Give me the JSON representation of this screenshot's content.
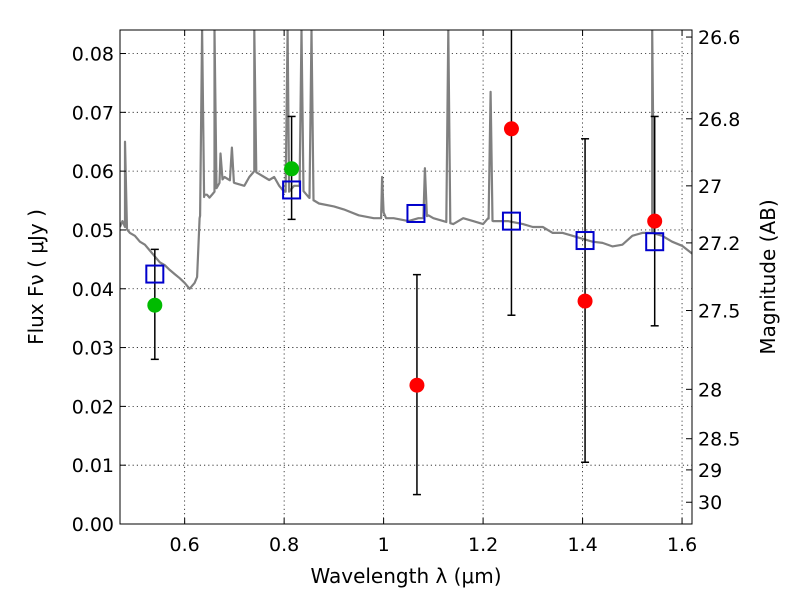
{
  "chart_data": {
    "type": "scatter",
    "title": "",
    "xlabel": "Wavelength  λ (μm)",
    "ylabel_left": "Flux  Fν ( μJy )",
    "ylabel_right": "Magnitude (AB)",
    "xlim": [
      0.47,
      1.62
    ],
    "ylim": [
      0.0,
      0.084
    ],
    "grid": true,
    "x_ticks": [
      0.6,
      0.8,
      1.0,
      1.2,
      1.4,
      1.6
    ],
    "x_tick_labels": [
      "0.6",
      "0.8",
      "1",
      "1.2",
      "1.4",
      "1.6"
    ],
    "y_ticks": [
      0.0,
      0.01,
      0.02,
      0.03,
      0.04,
      0.05,
      0.06,
      0.07,
      0.08
    ],
    "y_tick_labels": [
      "0.00",
      "0.01",
      "0.02",
      "0.03",
      "0.04",
      "0.05",
      "0.06",
      "0.07",
      "0.08"
    ],
    "right_ticks": [
      {
        "flux": 0.0828,
        "label": "26.6"
      },
      {
        "flux": 0.0689,
        "label": "26.8"
      },
      {
        "flux": 0.0575,
        "label": "27"
      },
      {
        "flux": 0.0478,
        "label": "27.2"
      },
      {
        "flux": 0.0363,
        "label": "27.5"
      },
      {
        "flux": 0.0229,
        "label": "28"
      },
      {
        "flux": 0.0145,
        "label": "28.5"
      },
      {
        "flux": 0.0092,
        "label": "29"
      },
      {
        "flux": 0.0037,
        "label": "30"
      }
    ],
    "series": [
      {
        "kind": "model-spectrum",
        "color": "#808080",
        "x": [
          0.47,
          0.475,
          0.48,
          0.49,
          0.5,
          0.51,
          0.52,
          0.53,
          0.54,
          0.55,
          0.56,
          0.57,
          0.58,
          0.59,
          0.6,
          0.61,
          0.62,
          0.625,
          0.63,
          0.64,
          0.645,
          0.65,
          0.66,
          0.67,
          0.68,
          0.7,
          0.72,
          0.73,
          0.74,
          0.75,
          0.76,
          0.77,
          0.78,
          0.79,
          0.8,
          0.81,
          0.82,
          0.83,
          0.84,
          0.85,
          0.86,
          0.87,
          0.9,
          0.92,
          0.95,
          0.98,
          0.995,
          1.0,
          1.005,
          1.02,
          1.05,
          1.07,
          1.08,
          1.09,
          1.1,
          1.12,
          1.14,
          1.16,
          1.18,
          1.2,
          1.21,
          1.22,
          1.25,
          1.28,
          1.3,
          1.32,
          1.34,
          1.36,
          1.38,
          1.4,
          1.42,
          1.44,
          1.46,
          1.48,
          1.5,
          1.52,
          1.54,
          1.56,
          1.58,
          1.6,
          1.62
        ],
        "y": [
          0.0505,
          0.0515,
          0.0505,
          0.0495,
          0.049,
          0.048,
          0.0475,
          0.0465,
          0.0455,
          0.0445,
          0.044,
          0.0432,
          0.0425,
          0.0418,
          0.041,
          0.04,
          0.041,
          0.042,
          0.052,
          0.056,
          0.056,
          0.0555,
          0.0565,
          0.058,
          0.059,
          0.058,
          0.0575,
          0.059,
          0.06,
          0.0595,
          0.059,
          0.0585,
          0.059,
          0.0575,
          0.0565,
          0.0565,
          0.0575,
          0.0575,
          0.0565,
          0.0555,
          0.055,
          0.0545,
          0.054,
          0.0535,
          0.0525,
          0.052,
          0.052,
          0.053,
          0.052,
          0.052,
          0.0515,
          0.052,
          0.052,
          0.0525,
          0.052,
          0.0515,
          0.051,
          0.052,
          0.0515,
          0.051,
          0.052,
          0.0515,
          0.0515,
          0.051,
          0.0505,
          0.0505,
          0.0495,
          0.0495,
          0.049,
          0.0485,
          0.048,
          0.0478,
          0.0472,
          0.0475,
          0.049,
          0.0495,
          0.0495,
          0.049,
          0.048,
          0.0473,
          0.046
        ],
        "emission_lines": [
          {
            "x": 0.48,
            "peak": 0.065
          },
          {
            "x": 0.635,
            "peak": 0.084
          },
          {
            "x": 0.66,
            "peak": 0.084
          },
          {
            "x": 0.672,
            "peak": 0.063
          },
          {
            "x": 0.695,
            "peak": 0.064
          },
          {
            "x": 0.74,
            "peak": 0.084
          },
          {
            "x": 0.807,
            "peak": 0.084
          },
          {
            "x": 0.835,
            "peak": 0.084
          },
          {
            "x": 0.855,
            "peak": 0.084
          },
          {
            "x": 0.997,
            "peak": 0.059
          },
          {
            "x": 1.083,
            "peak": 0.0605
          },
          {
            "x": 1.13,
            "peak": 0.084
          },
          {
            "x": 1.215,
            "peak": 0.0735
          },
          {
            "x": 1.54,
            "peak": 0.084
          }
        ]
      },
      {
        "kind": "model-photometry",
        "marker": "open-square",
        "color": "#0000cc",
        "x": [
          0.54,
          0.815,
          1.065,
          1.257,
          1.405,
          1.545
        ],
        "y": [
          0.0425,
          0.0568,
          0.0528,
          0.0515,
          0.0482,
          0.048
        ]
      },
      {
        "kind": "observed-photometry-green",
        "marker": "filled-circle",
        "color": "#00bb00",
        "x": [
          0.54,
          0.815
        ],
        "y": [
          0.0372,
          0.0604
        ],
        "err_low": [
          0.028,
          0.0518
        ],
        "err_high": [
          0.0467,
          0.0693
        ]
      },
      {
        "kind": "observed-photometry-red",
        "marker": "filled-circle",
        "color": "#ff0000",
        "x": [
          1.067,
          1.257,
          1.405,
          1.545
        ],
        "y": [
          0.0236,
          0.0672,
          0.0379,
          0.0515
        ],
        "err_low": [
          0.005,
          0.0355,
          0.0105,
          0.0337
        ],
        "err_high": [
          0.0424,
          0.084,
          0.0655,
          0.0693
        ]
      }
    ]
  }
}
